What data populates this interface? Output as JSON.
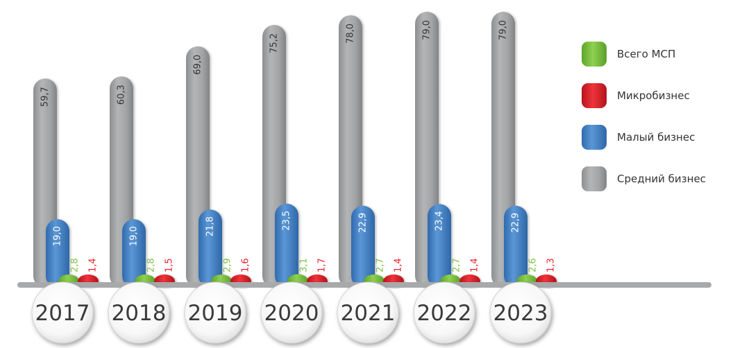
{
  "chart_data": {
    "type": "bar",
    "categories": [
      "2017",
      "2018",
      "2019",
      "2020",
      "2021",
      "2022",
      "2023"
    ],
    "value_labels": {
      "total": [
        "2,8",
        "2,8",
        "2,9",
        "3,1",
        "2,7",
        "2,7",
        "2,6"
      ],
      "micro": [
        "1,4",
        "1,5",
        "1,6",
        "1,7",
        "1,4",
        "1,4",
        "1,3"
      ],
      "small": [
        "19,0",
        "19,0",
        "21,8",
        "23,5",
        "22,9",
        "23,4",
        "22,9"
      ],
      "medium": [
        "59,7",
        "60,3",
        "69,0",
        "75,2",
        "78,0",
        "79,0",
        "79,0"
      ]
    },
    "series": [
      {
        "key": "total",
        "name": "Всего МСП",
        "color": "#7dc242",
        "label_color": "#7dc242",
        "values": [
          2.8,
          2.8,
          2.9,
          3.1,
          2.7,
          2.7,
          2.6
        ]
      },
      {
        "key": "micro",
        "name": "Микробизнес",
        "color": "#e8202a",
        "label_color": "#e8202a",
        "values": [
          1.4,
          1.5,
          1.6,
          1.7,
          1.4,
          1.4,
          1.3
        ]
      },
      {
        "key": "small",
        "name": "Малый бизнес",
        "color": "#4a86c8",
        "label_color": "#ffffff",
        "values": [
          19.0,
          19.0,
          21.8,
          23.5,
          22.9,
          23.4,
          22.9
        ]
      },
      {
        "key": "medium",
        "name": "Средний бизнес",
        "color": "#a4a6a8",
        "label_color": "#333333",
        "values": [
          59.7,
          60.3,
          69.0,
          75.2,
          78.0,
          79.0,
          79.0
        ]
      }
    ],
    "ylim": [
      0,
      80
    ],
    "grid": false,
    "legend_position": "right",
    "xlabel": "",
    "ylabel": "",
    "title": ""
  }
}
